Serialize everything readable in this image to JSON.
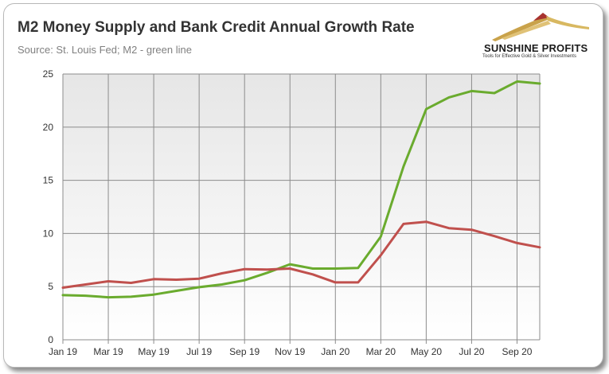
{
  "chart_data": {
    "type": "line",
    "title": "M2 Money Supply and Bank Credit Annual Growth Rate",
    "subtitle": "Source: St. Louis Fed; M2 - green line",
    "xlabel": "",
    "ylabel": "",
    "ylim": [
      0,
      25
    ],
    "yticks": [
      0,
      5,
      10,
      15,
      20,
      25
    ],
    "x": [
      "Jan 19",
      "Feb 19",
      "Mar 19",
      "Apr 19",
      "May 19",
      "Jun 19",
      "Jul 19",
      "Aug 19",
      "Sep 19",
      "Oct 19",
      "Nov 19",
      "Dec 19",
      "Jan 20",
      "Feb 20",
      "Mar 20",
      "Apr 20",
      "May 20",
      "Jun 20",
      "Jul 20",
      "Aug 20",
      "Sep 20",
      "Oct 20"
    ],
    "xtick_labels": [
      "Jan 19",
      "Mar 19",
      "May 19",
      "Jul 19",
      "Sep 19",
      "Nov 19",
      "Jan 20",
      "Mar 20",
      "May 20",
      "Jul 20",
      "Sep 20"
    ],
    "grid": true,
    "series": [
      {
        "color": "#6aab2e",
        "values": [
          4.2,
          4.15,
          4.0,
          4.05,
          4.25,
          4.6,
          4.95,
          5.2,
          5.6,
          6.3,
          7.1,
          6.7,
          6.7,
          6.75,
          9.7,
          16.3,
          21.7,
          22.8,
          23.4,
          23.2,
          24.3,
          24.1
        ]
      },
      {
        "color": "#c0504d",
        "values": [
          4.9,
          5.2,
          5.5,
          5.35,
          5.7,
          5.65,
          5.75,
          6.25,
          6.65,
          6.6,
          6.7,
          6.15,
          5.4,
          5.4,
          7.95,
          10.9,
          11.1,
          10.5,
          10.35,
          9.75,
          9.1,
          8.7
        ]
      }
    ]
  },
  "logo": {
    "name": "SUNSHINE PROFITS",
    "tagline": "Tools for Effective Gold & Silver Investments"
  }
}
